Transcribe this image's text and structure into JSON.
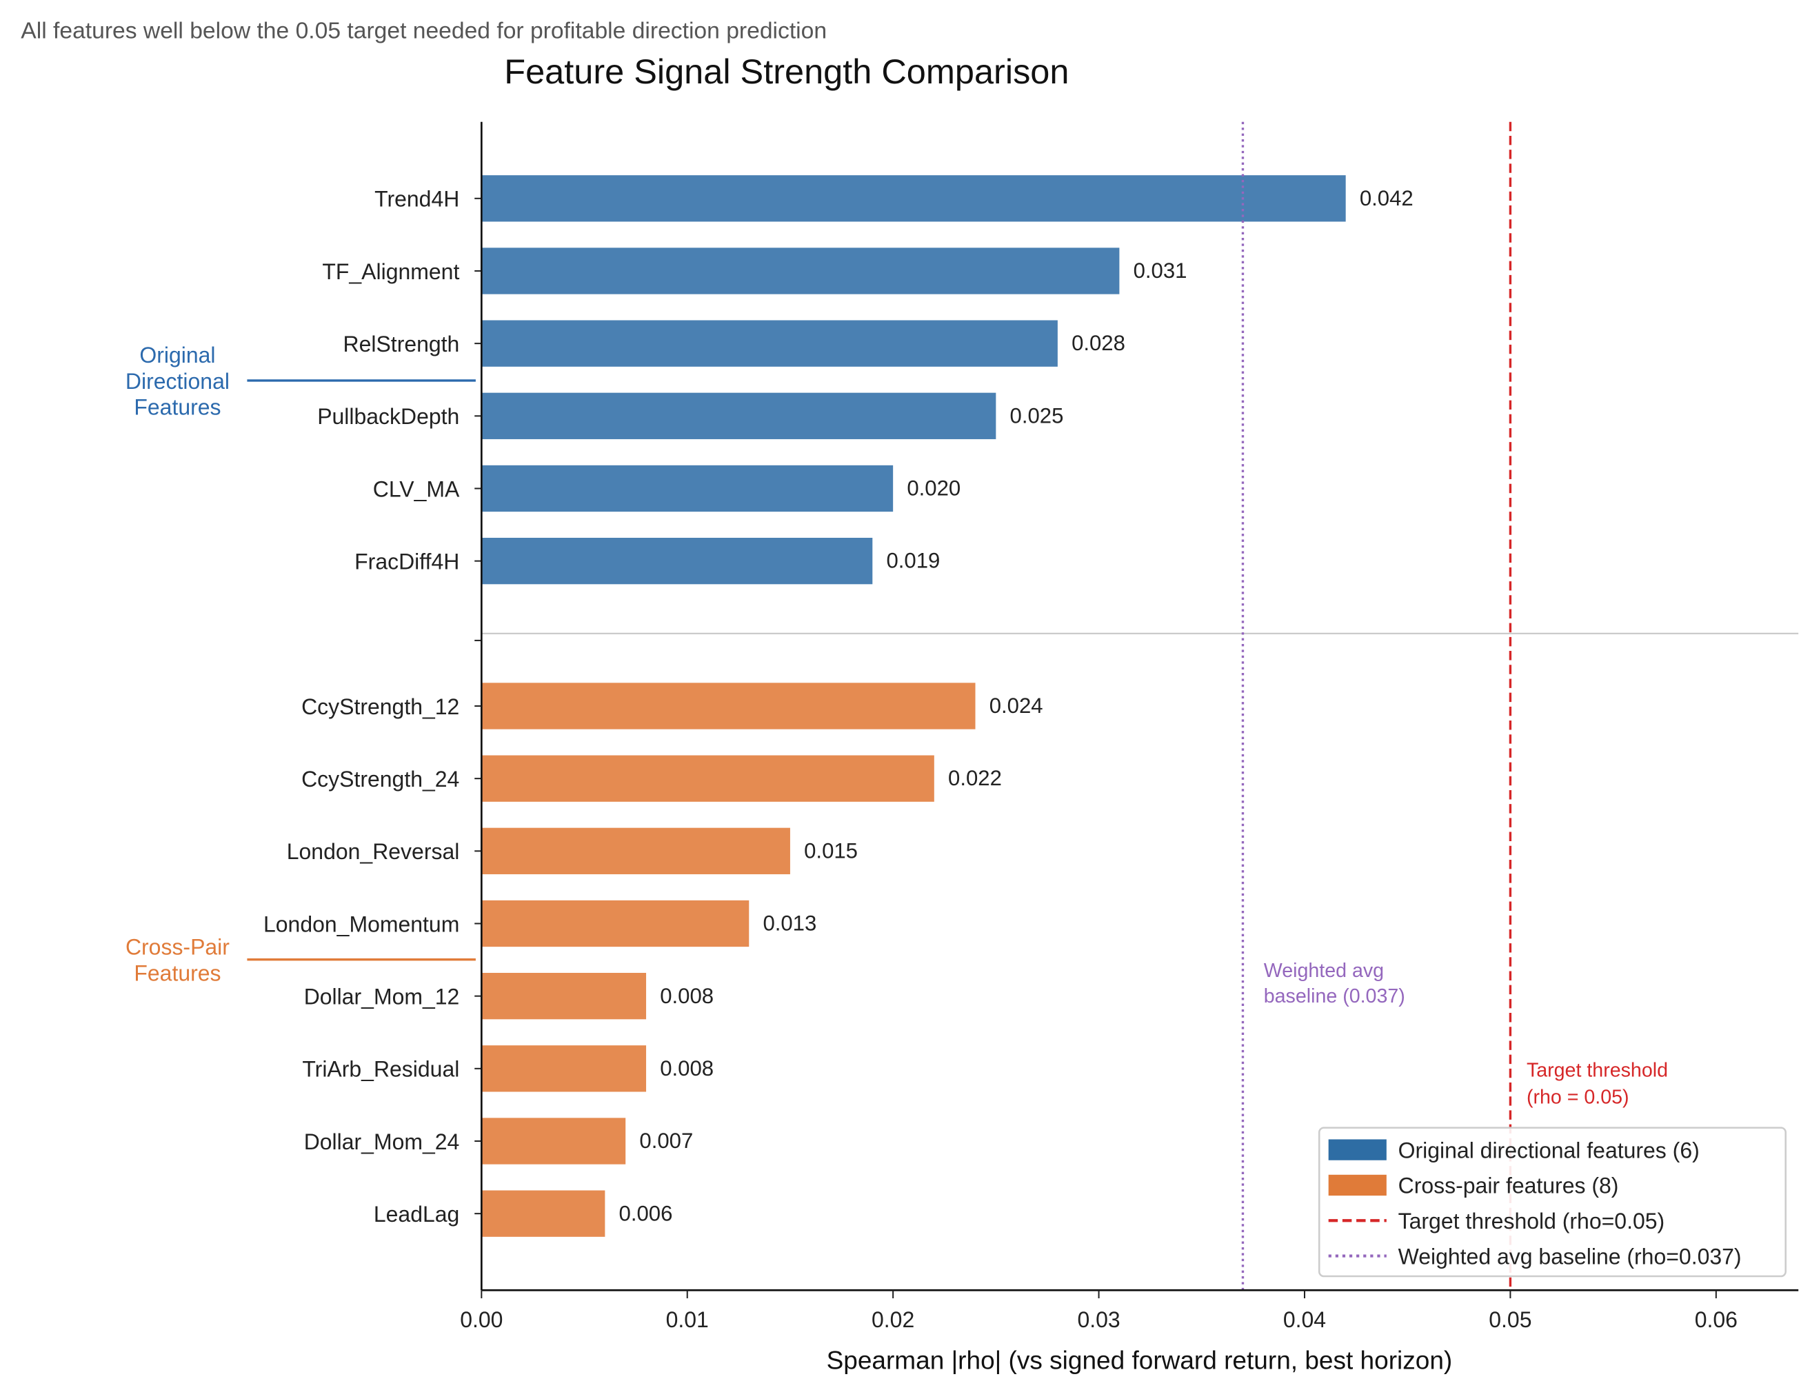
{
  "chart_data": {
    "type": "bar",
    "orientation": "horizontal",
    "subtitle": "All features well below the 0.05 target needed for profitable direction prediction",
    "title": "Feature Signal Strength Comparison",
    "xlabel": "Spearman |rho| (vs signed forward return, best horizon)",
    "ylabel": "",
    "xlim": [
      0,
      0.064
    ],
    "xticks": [
      "0.00",
      "0.01",
      "0.02",
      "0.03",
      "0.04",
      "0.05",
      "0.06"
    ],
    "xtick_values": [
      0,
      0.01,
      0.02,
      0.03,
      0.04,
      0.05,
      0.06
    ],
    "grid": false,
    "legend_placement": "lower-right",
    "groups": [
      {
        "label": "Original\nDirectional\nFeatures",
        "label_lines": [
          "Original",
          "Directional",
          "Features"
        ],
        "color": "#2c6aad",
        "bar_color": "#4a80b2",
        "categories": [
          "Trend4H",
          "TF_Alignment",
          "RelStrength",
          "PullbackDepth",
          "CLV_MA",
          "FracDiff4H"
        ],
        "values": [
          0.042,
          0.031,
          0.028,
          0.025,
          0.02,
          0.019
        ],
        "value_labels": [
          "0.042",
          "0.031",
          "0.028",
          "0.025",
          "0.020",
          "0.019"
        ]
      },
      {
        "label": "Cross-Pair\nFeatures",
        "label_lines": [
          "Cross-Pair",
          "Features"
        ],
        "color": "#e07b39",
        "bar_color": "#e58b51",
        "categories": [
          "CcyStrength_12",
          "CcyStrength_24",
          "London_Reversal",
          "London_Momentum",
          "Dollar_Mom_12",
          "TriArb_Residual",
          "Dollar_Mom_24",
          "LeadLag"
        ],
        "values": [
          0.024,
          0.022,
          0.015,
          0.013,
          0.008,
          0.008,
          0.007,
          0.006
        ],
        "value_labels": [
          "0.024",
          "0.022",
          "0.015",
          "0.013",
          "0.008",
          "0.008",
          "0.007",
          "0.006"
        ]
      }
    ],
    "reference_lines": [
      {
        "name": "Target threshold (rho=0.05)",
        "value": 0.05,
        "style": "dashed",
        "color": "#d62728",
        "annotation_lines": [
          "Target threshold",
          "(rho = 0.05)"
        ]
      },
      {
        "name": "Weighted avg baseline (rho=0.037)",
        "value": 0.037,
        "style": "dotted",
        "color": "#9467bd",
        "annotation_lines": [
          "Weighted avg",
          "baseline (0.037)"
        ]
      }
    ],
    "legend": [
      {
        "label": "Original directional features (6)",
        "kind": "patch",
        "color": "#2e6da4"
      },
      {
        "label": "Cross-pair features (8)",
        "kind": "patch",
        "color": "#e07b39"
      },
      {
        "label": "Target threshold (rho=0.05)",
        "kind": "dashed",
        "color": "#d62728"
      },
      {
        "label": "Weighted avg baseline (rho=0.037)",
        "kind": "dotted",
        "color": "#9467bd"
      }
    ]
  }
}
